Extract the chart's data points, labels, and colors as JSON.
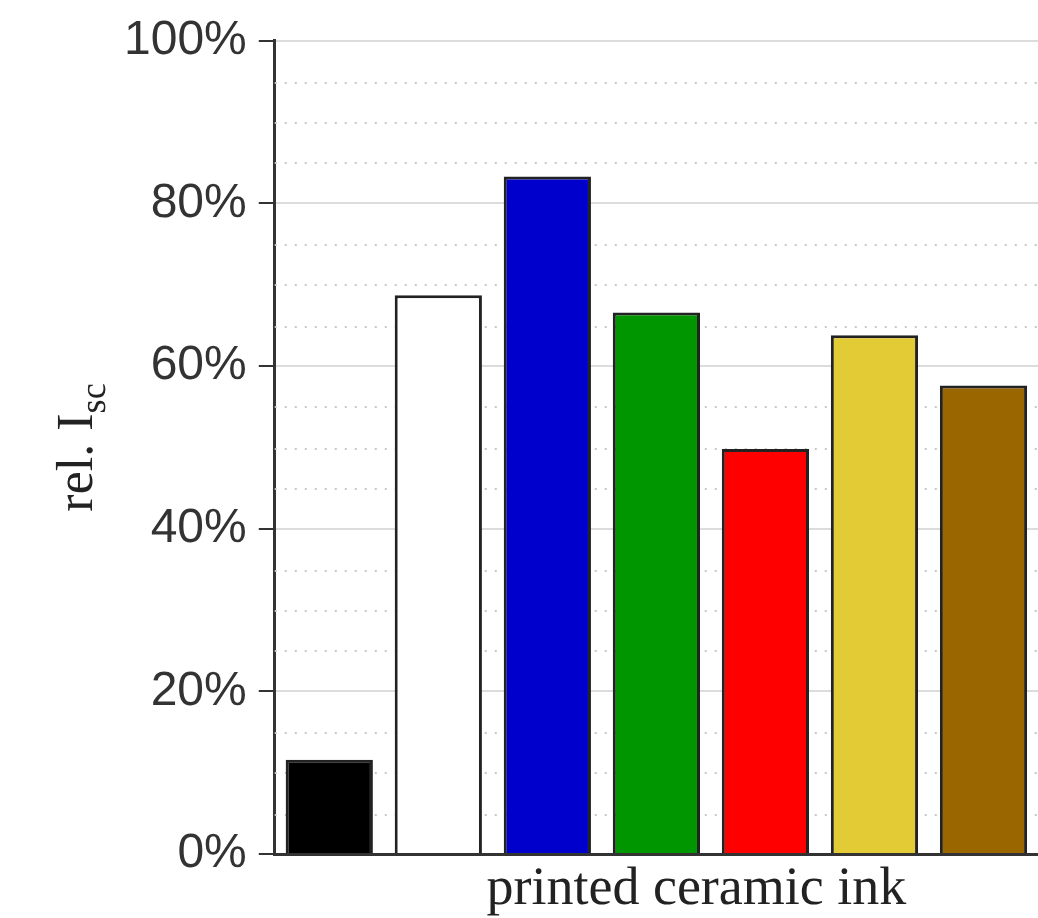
{
  "chart_data": {
    "type": "bar",
    "xlabel": "printed ceramic ink",
    "ylabel": "rel. I$_{sc}$",
    "categories": [
      null,
      null,
      null,
      null,
      null,
      null,
      null
    ],
    "values": [
      11.6,
      68.7,
      83.3,
      66.6,
      49.8,
      63.8,
      57.6
    ],
    "colors": [
      "#000000",
      "#ffffff",
      "#0000cc",
      "#009600",
      "#ff0000",
      "#e3cb35",
      "#996600"
    ],
    "ylim": [
      0,
      100
    ],
    "yticks": [
      {
        "value": 0,
        "label": "0%"
      },
      {
        "value": 5,
        "label": null
      },
      {
        "value": 10,
        "label": null
      },
      {
        "value": 15,
        "label": null
      },
      {
        "value": 20,
        "label": "20%"
      },
      {
        "value": 25,
        "label": null
      },
      {
        "value": 30,
        "label": null
      },
      {
        "value": 35,
        "label": null
      },
      {
        "value": 40,
        "label": "40%"
      },
      {
        "value": 45,
        "label": null
      },
      {
        "value": 50,
        "label": null
      },
      {
        "value": 55,
        "label": null
      },
      {
        "value": 60,
        "label": "60%"
      },
      {
        "value": 65,
        "label": null
      },
      {
        "value": 70,
        "label": null
      },
      {
        "value": 75,
        "label": null
      },
      {
        "value": 80,
        "label": "80%"
      },
      {
        "value": 85,
        "label": null
      },
      {
        "value": 90,
        "label": null
      },
      {
        "value": 95,
        "label": null
      },
      {
        "value": 100,
        "label": "100%"
      }
    ],
    "grid": "y",
    "tick_labels": "y"
  }
}
